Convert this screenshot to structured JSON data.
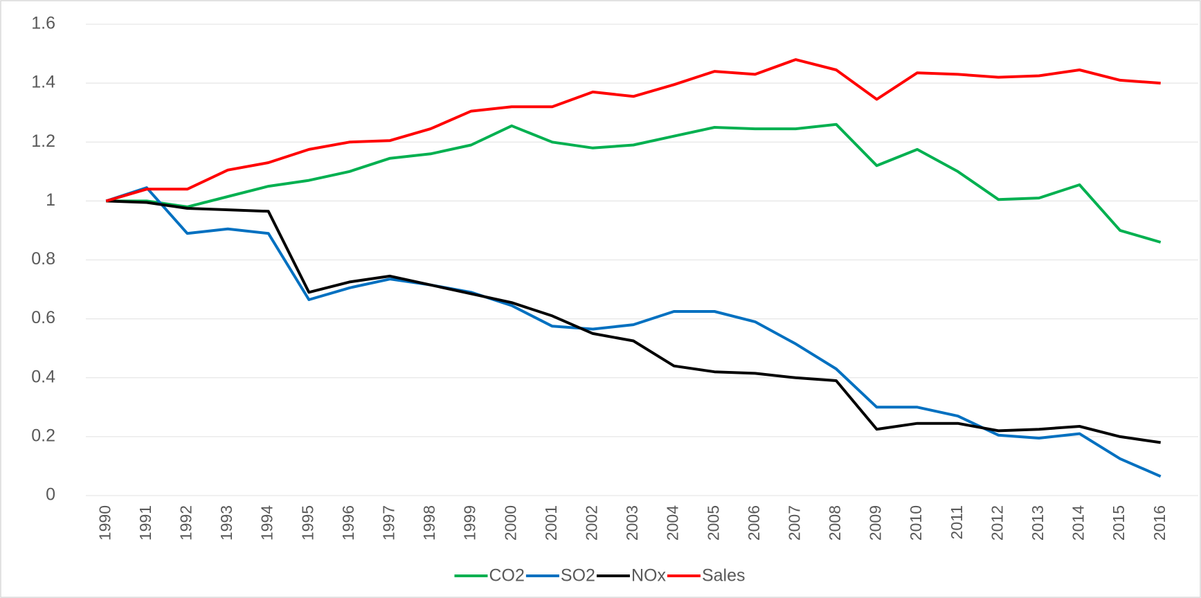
{
  "chart_data": {
    "type": "line",
    "categories": [
      "1990",
      "1991",
      "1992",
      "1993",
      "1994",
      "1995",
      "1996",
      "1997",
      "1998",
      "1999",
      "2000",
      "2001",
      "2002",
      "2003",
      "2004",
      "2005",
      "2006",
      "2007",
      "2008",
      "2009",
      "2010",
      "2011",
      "2012",
      "2013",
      "2014",
      "2015",
      "2016"
    ],
    "series": [
      {
        "name": "CO2",
        "color": "#00b050",
        "values": [
          1.0,
          1.0,
          0.98,
          1.015,
          1.05,
          1.07,
          1.1,
          1.145,
          1.16,
          1.19,
          1.255,
          1.2,
          1.18,
          1.19,
          1.22,
          1.25,
          1.245,
          1.245,
          1.26,
          1.12,
          1.175,
          1.1,
          1.005,
          1.01,
          1.055,
          0.9,
          0.86
        ]
      },
      {
        "name": "SO2",
        "color": "#0070c0",
        "values": [
          1.0,
          1.045,
          0.89,
          0.905,
          0.89,
          0.665,
          0.705,
          0.735,
          0.715,
          0.69,
          0.645,
          0.575,
          0.565,
          0.58,
          0.625,
          0.625,
          0.59,
          0.515,
          0.43,
          0.3,
          0.3,
          0.27,
          0.205,
          0.195,
          0.21,
          0.125,
          0.065
        ]
      },
      {
        "name": "NOx",
        "color": "#000000",
        "values": [
          1.0,
          0.995,
          0.975,
          0.97,
          0.965,
          0.69,
          0.725,
          0.745,
          0.715,
          0.685,
          0.655,
          0.61,
          0.55,
          0.525,
          0.44,
          0.42,
          0.415,
          0.4,
          0.39,
          0.225,
          0.245,
          0.245,
          0.22,
          0.225,
          0.235,
          0.2,
          0.18
        ]
      },
      {
        "name": "Sales",
        "color": "#ff0000",
        "values": [
          1.0,
          1.04,
          1.04,
          1.105,
          1.13,
          1.175,
          1.2,
          1.205,
          1.245,
          1.305,
          1.32,
          1.32,
          1.37,
          1.355,
          1.395,
          1.44,
          1.43,
          1.48,
          1.445,
          1.345,
          1.435,
          1.43,
          1.42,
          1.425,
          1.445,
          1.41,
          1.4
        ]
      }
    ],
    "ylim": [
      0,
      1.6
    ],
    "yticks": [
      0,
      0.2,
      0.4,
      0.6,
      0.8,
      1,
      1.2,
      1.4,
      1.6
    ],
    "grid": true,
    "legend": "bottom"
  }
}
